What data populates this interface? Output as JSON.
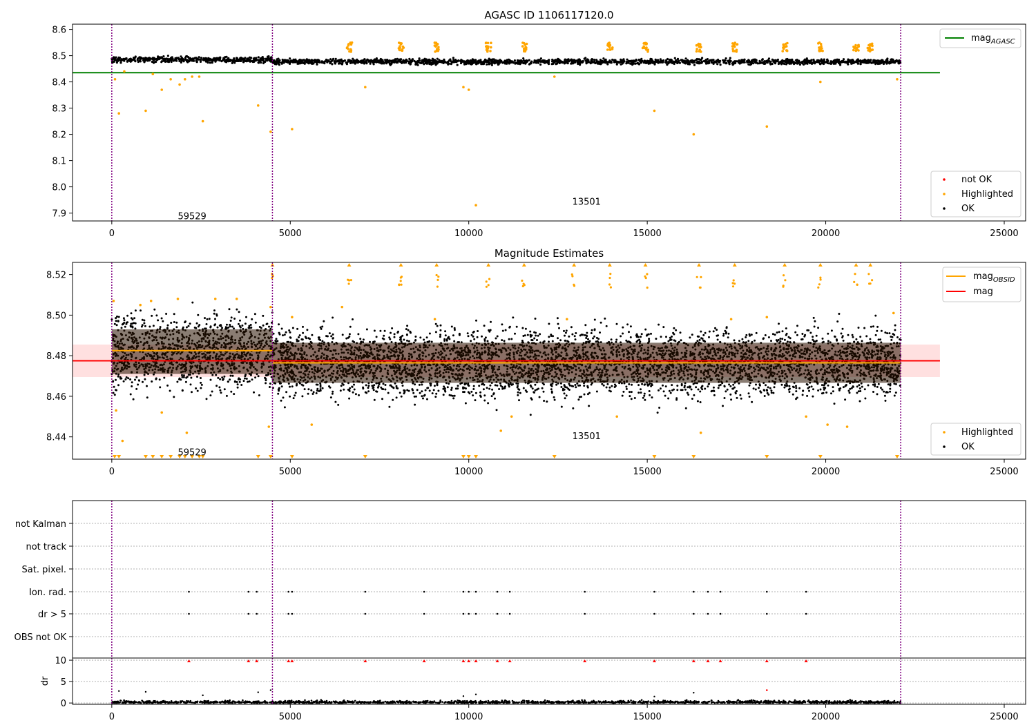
{
  "chart_data": [
    {
      "type": "scatter",
      "title": "AGASC ID 1106117120.0",
      "xlim": [
        -1100,
        25600
      ],
      "ylim": [
        7.87,
        8.62
      ],
      "xticks": [
        0,
        5000,
        10000,
        15000,
        20000,
        25000
      ],
      "yticks": [
        7.9,
        8.0,
        8.1,
        8.2,
        8.3,
        8.4,
        8.5,
        8.6
      ],
      "ytick_labels": [
        "7.9",
        "8.0",
        "8.1",
        "8.2",
        "8.3",
        "8.4",
        "8.5",
        "8.6"
      ],
      "vlines": [
        0,
        4500,
        22100
      ],
      "annotations": [
        {
          "text": "59529",
          "x": 2250,
          "y": 7.89
        },
        {
          "text": "13501",
          "x": 13300,
          "y": 7.945
        }
      ],
      "hline": {
        "name": "mag_AGASC",
        "y": 8.435,
        "x_range": [
          -1100,
          23200
        ],
        "color": "#008000"
      },
      "legend_upper": {
        "position": "upper right",
        "entries": [
          {
            "main": "mag",
            "sub": "AGASC",
            "color": "#008000"
          }
        ]
      },
      "legend_lower": {
        "position": "lower right",
        "entries": [
          {
            "label": "not OK",
            "color": "#ff0000"
          },
          {
            "label": "Highlighted",
            "color": "#ffa500"
          },
          {
            "label": "OK",
            "color": "#000000"
          }
        ]
      },
      "ok_band": {
        "segments": [
          {
            "x": [
              0,
              4500
            ],
            "center": 8.485,
            "spread": 0.012
          },
          {
            "x": [
              4500,
              22100
            ],
            "center": 8.477,
            "spread": 0.011
          }
        ]
      },
      "highlighted_points": [
        {
          "x": 90,
          "y": 8.41
        },
        {
          "x": 200,
          "y": 8.28
        },
        {
          "x": 350,
          "y": 8.44
        },
        {
          "x": 950,
          "y": 8.29
        },
        {
          "x": 1150,
          "y": 8.43
        },
        {
          "x": 1400,
          "y": 8.37
        },
        {
          "x": 1650,
          "y": 8.41
        },
        {
          "x": 1900,
          "y": 8.39
        },
        {
          "x": 2050,
          "y": 8.41
        },
        {
          "x": 2250,
          "y": 8.42
        },
        {
          "x": 2450,
          "y": 8.42
        },
        {
          "x": 2550,
          "y": 8.25
        },
        {
          "x": 4100,
          "y": 8.31
        },
        {
          "x": 4450,
          "y": 8.21
        },
        {
          "x": 5050,
          "y": 8.22
        },
        {
          "x": 7100,
          "y": 8.38
        },
        {
          "x": 9850,
          "y": 8.38
        },
        {
          "x": 10000,
          "y": 8.37
        },
        {
          "x": 10200,
          "y": 7.93
        },
        {
          "x": 12400,
          "y": 8.42
        },
        {
          "x": 15200,
          "y": 8.29
        },
        {
          "x": 16300,
          "y": 8.2
        },
        {
          "x": 18350,
          "y": 8.23
        },
        {
          "x": 19850,
          "y": 8.4
        },
        {
          "x": 22000,
          "y": 8.41
        }
      ],
      "highlighted_clusters": [
        6650,
        8100,
        9100,
        10550,
        11550,
        13950,
        14950,
        16450,
        17450,
        18850,
        19850,
        20850,
        21250
      ]
    },
    {
      "type": "scatter",
      "title": "Magnitude Estimates",
      "xlim": [
        -1100,
        25600
      ],
      "ylim": [
        8.429,
        8.526
      ],
      "xticks": [
        0,
        5000,
        10000,
        15000,
        20000,
        25000
      ],
      "yticks": [
        8.44,
        8.46,
        8.48,
        8.5,
        8.52
      ],
      "ytick_labels": [
        "8.44",
        "8.46",
        "8.48",
        "8.50",
        "8.52"
      ],
      "vlines": [
        0,
        4500,
        22100
      ],
      "annotations": [
        {
          "text": "59529",
          "x": 2250,
          "y": 8.4325
        },
        {
          "text": "13501",
          "x": 13300,
          "y": 8.4405
        }
      ],
      "mag_band": {
        "y": 8.4775,
        "low": 8.4695,
        "high": 8.4855,
        "x_range": [
          -1100,
          23200
        ],
        "color": "#ff0000"
      },
      "mag_obsid_segments": [
        {
          "x": [
            0,
            4500
          ],
          "y": 8.4825
        },
        {
          "x": [
            4500,
            22100
          ],
          "y": 8.4765
        }
      ],
      "legend_upper": {
        "position": "upper right",
        "entries": [
          {
            "main": "mag",
            "sub": "OBSID",
            "color": "#ffa500"
          },
          {
            "main": "mag",
            "sub": "",
            "color": "#ff0000"
          }
        ]
      },
      "legend_lower": {
        "position": "lower right",
        "entries": [
          {
            "label": "Highlighted",
            "color": "#ffa500"
          },
          {
            "label": "OK",
            "color": "#000000"
          }
        ]
      },
      "ok_band": {
        "segments": [
          {
            "x": [
              0,
              4500
            ],
            "center": 8.482,
            "spread": 0.02
          },
          {
            "x": [
              4500,
              22100
            ],
            "center": 8.4765,
            "spread": 0.018
          }
        ]
      },
      "highlighted_points": [
        {
          "x": 50,
          "y": 8.507
        },
        {
          "x": 120,
          "y": 8.453
        },
        {
          "x": 300,
          "y": 8.438
        },
        {
          "x": 800,
          "y": 8.505
        },
        {
          "x": 1100,
          "y": 8.507
        },
        {
          "x": 1400,
          "y": 8.452
        },
        {
          "x": 1850,
          "y": 8.508
        },
        {
          "x": 2100,
          "y": 8.442
        },
        {
          "x": 2900,
          "y": 8.508
        },
        {
          "x": 3500,
          "y": 8.508
        },
        {
          "x": 4400,
          "y": 8.445
        },
        {
          "x": 4450,
          "y": 8.504
        },
        {
          "x": 5050,
          "y": 8.499
        },
        {
          "x": 5600,
          "y": 8.446
        },
        {
          "x": 6450,
          "y": 8.504
        },
        {
          "x": 8050,
          "y": 8.515
        },
        {
          "x": 9050,
          "y": 8.498
        },
        {
          "x": 10900,
          "y": 8.443
        },
        {
          "x": 11200,
          "y": 8.45
        },
        {
          "x": 12750,
          "y": 8.498
        },
        {
          "x": 14150,
          "y": 8.45
        },
        {
          "x": 16500,
          "y": 8.442
        },
        {
          "x": 17350,
          "y": 8.498
        },
        {
          "x": 18350,
          "y": 8.499
        },
        {
          "x": 19450,
          "y": 8.45
        },
        {
          "x": 20050,
          "y": 8.446
        },
        {
          "x": 20600,
          "y": 8.445
        },
        {
          "x": 21900,
          "y": 8.501
        }
      ],
      "overflow_up": [
        4500,
        6650,
        8100,
        9100,
        10550,
        11550,
        12950,
        13950,
        14950,
        16450,
        17450,
        18850,
        19850,
        20850,
        21250
      ],
      "overflow_down": [
        80,
        200,
        950,
        1150,
        1400,
        1650,
        1900,
        2050,
        2250,
        2450,
        2550,
        4100,
        4450,
        5050,
        7100,
        9850,
        10000,
        10200,
        12400,
        15200,
        16300,
        18350,
        19850,
        22000
      ]
    },
    {
      "type": "scatter",
      "title": "",
      "xlim": [
        -1100,
        25600
      ],
      "xticks": [
        0,
        5000,
        10000,
        15000,
        20000,
        25000
      ],
      "vlines": [
        0,
        4500,
        22100
      ],
      "flag_labels": [
        "not Kalman",
        "not track",
        "Sat. pixel.",
        "Ion. rad.",
        "dr > 5",
        "OBS not OK"
      ],
      "flag_events_x": [
        2160,
        3830,
        4060,
        4950,
        5050,
        7100,
        8750,
        9850,
        10000,
        10200,
        10800,
        11150,
        13250,
        15200,
        16300,
        16700,
        17050,
        18350,
        19450
      ],
      "dr": {
        "ylabel": "dr",
        "ylim": [
          -0.3,
          10.5
        ],
        "yticks": [
          0,
          5,
          10
        ],
        "ytick_labels": [
          "0",
          "5",
          "10"
        ],
        "outliers": [
          {
            "x": 200,
            "y": 2.8
          },
          {
            "x": 950,
            "y": 2.6
          },
          {
            "x": 2550,
            "y": 1.8
          },
          {
            "x": 4100,
            "y": 2.5
          },
          {
            "x": 4450,
            "y": 3.0
          },
          {
            "x": 9850,
            "y": 1.6
          },
          {
            "x": 10200,
            "y": 2.0
          },
          {
            "x": 15200,
            "y": 1.5
          },
          {
            "x": 16300,
            "y": 2.4
          }
        ],
        "red_outliers": [
          {
            "x": 18350,
            "y": 3.0
          }
        ]
      }
    }
  ]
}
